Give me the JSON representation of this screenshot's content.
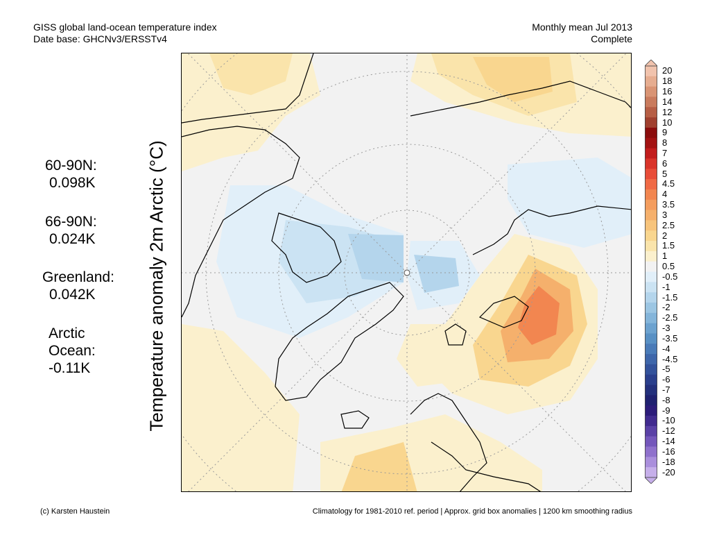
{
  "header": {
    "title": "GISS global land-ocean temperature index",
    "database": "Date base: GHCNv3/ERSSTv4",
    "period": "Monthly mean Jul 2013",
    "status": "Complete"
  },
  "axis_label": "Temperature anomaly 2m Arctic (°C)",
  "stats": [
    {
      "region": "60-90N:",
      "value": "0.098K"
    },
    {
      "region": "66-90N:",
      "value": "0.024K"
    },
    {
      "region": "Greenland:",
      "value": "0.042K"
    },
    {
      "region": "Arctic Ocean:",
      "value": "-0.11K"
    }
  ],
  "legend": {
    "labels": [
      "20",
      "18",
      "16",
      "14",
      "12",
      "10",
      "9",
      "8",
      "7",
      "6",
      "5",
      "4.5",
      "4",
      "3.5",
      "3",
      "2.5",
      "2",
      "1.5",
      "1",
      "0.5",
      "-0.5",
      "-1",
      "-1.5",
      "-2",
      "-2.5",
      "-3",
      "-3.5",
      "-4",
      "-4.5",
      "-5",
      "-6",
      "-7",
      "-8",
      "-9",
      "-10",
      "-12",
      "-14",
      "-16",
      "-18",
      "-20"
    ],
    "colors": [
      "#f1c3ad",
      "#e6ad90",
      "#d99474",
      "#c97b5d",
      "#b65e45",
      "#a0402f",
      "#8b0d0d",
      "#a31313",
      "#c21d1d",
      "#d9342a",
      "#e84d38",
      "#f06a45",
      "#f28650",
      "#f49d5e",
      "#f5b06c",
      "#f7c47c",
      "#f9d68f",
      "#fae4ab",
      "#fbf0cd",
      "#f2f2f2",
      "#e1eff9",
      "#cbe3f3",
      "#b4d5ec",
      "#9cc6e3",
      "#84b5da",
      "#6ca2cf",
      "#5890c4",
      "#4a7bb8",
      "#3e66aa",
      "#33529b",
      "#2a3f8c",
      "#23307c",
      "#1f2170",
      "#2c1c7a",
      "#412b8f",
      "#5a41a6",
      "#7457bb",
      "#8f71cc",
      "#aa8fdc",
      "#c6afea"
    ]
  },
  "footer": {
    "credit": "(c) Karsten Haustein",
    "note": "Climatology for 1981-2010 ref. period | Approx. grid box anomalies | 1200 km smoothing radius"
  }
}
